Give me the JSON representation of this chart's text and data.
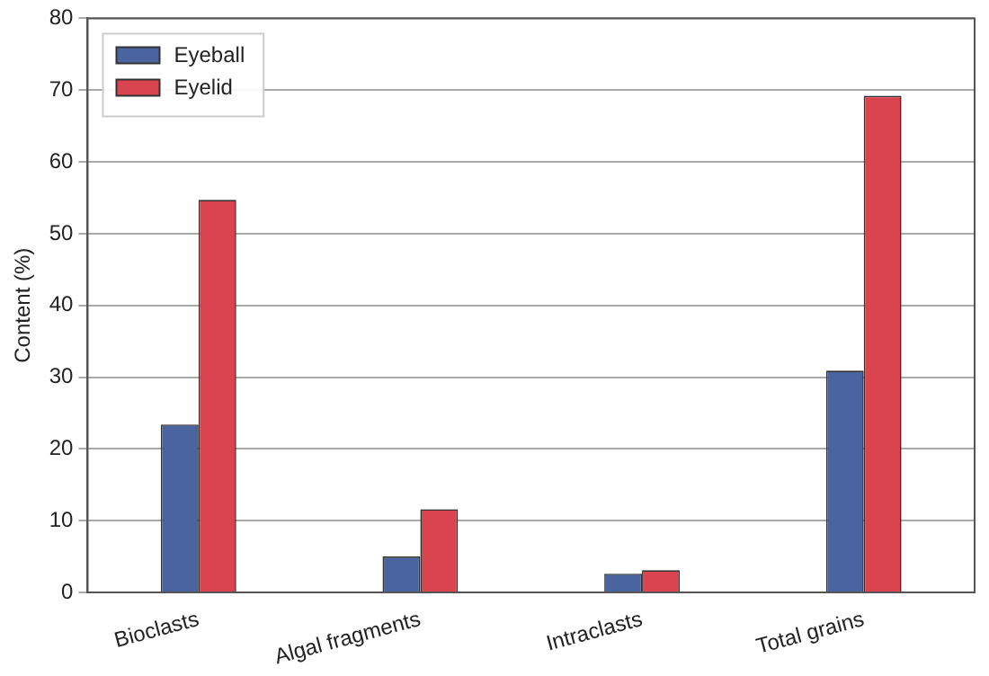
{
  "chart_data": {
    "type": "bar",
    "ylabel": "Content (%)",
    "categories": [
      "Bioclasts",
      "Algal fragments",
      "Intraclasts",
      "Total grains"
    ],
    "series": [
      {
        "name": "Eyeball",
        "color": "#4a64a0",
        "values": [
          23.4,
          5.0,
          2.6,
          30.9
        ]
      },
      {
        "name": "Eyelid",
        "color": "#d9444e",
        "values": [
          54.7,
          11.6,
          3.1,
          69.2
        ]
      }
    ],
    "ylim": [
      0,
      80
    ],
    "yticks": [
      0,
      10,
      20,
      30,
      40,
      50,
      60,
      70,
      80
    ],
    "grid": "y",
    "legend": "top left"
  }
}
